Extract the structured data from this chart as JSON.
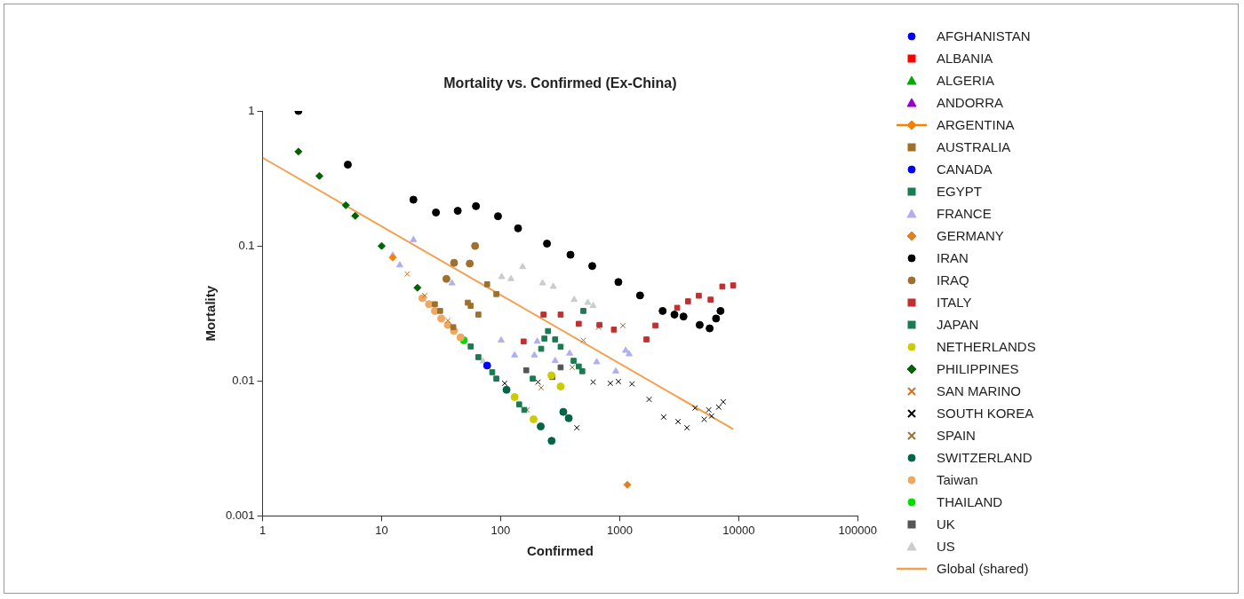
{
  "chart_data": {
    "type": "scatter",
    "title": "Mortality vs. Confirmed (Ex-China)",
    "xlabel": "Confirmed",
    "ylabel": "Mortality",
    "log": "xy",
    "grid": false,
    "legend": "right",
    "xlim": [
      1,
      100000
    ],
    "xticks": [
      1,
      10,
      100,
      1000,
      10000,
      100000
    ],
    "ylim": [
      0.001,
      1
    ],
    "yticks": [
      0.001,
      0.01,
      0.1,
      1
    ],
    "series": [
      {
        "name": "AFGHANISTAN",
        "color": "#0000ff",
        "marker": "circle"
      },
      {
        "name": "ALBANIA",
        "color": "#ff0000",
        "marker": "square"
      },
      {
        "name": "ALGERIA",
        "color": "#00aa00",
        "marker": "triangle"
      },
      {
        "name": "ANDORRA",
        "color": "#9900cc",
        "marker": "triangle"
      },
      {
        "name": "ARGENTINA",
        "type": "line",
        "color": "#ff8000",
        "marker": "diamond",
        "x": [
          12.4
        ],
        "values": [
          0.082
        ]
      },
      {
        "name": "AUSTRALIA",
        "color": "#a0702a",
        "marker": "square",
        "x": [
          28,
          31,
          40,
          53,
          56,
          65,
          77,
          92
        ],
        "values": [
          0.037,
          0.033,
          0.025,
          0.038,
          0.036,
          0.031,
          0.052,
          0.044
        ]
      },
      {
        "name": "CANADA",
        "color": "#0000ff",
        "marker": "circle",
        "x": [
          77
        ],
        "values": [
          0.013
        ]
      },
      {
        "name": "EGYPT",
        "color": "#1a7a50",
        "marker": "square",
        "x": [
          56
        ],
        "values": [
          0.018
        ]
      },
      {
        "name": "FRANCE",
        "color": "#b0b0f0",
        "marker": "triangle",
        "x": [
          12.4,
          14.2,
          18.5,
          39,
          101,
          131,
          192,
          203,
          287,
          380,
          641,
          927,
          1122,
          1200
        ],
        "values": [
          0.085,
          0.072,
          0.111,
          0.053,
          0.02,
          0.0155,
          0.0155,
          0.0196,
          0.0141,
          0.016,
          0.0138,
          0.0118,
          0.0168,
          0.0158
        ]
      },
      {
        "name": "GERMANY",
        "color": "#e08020",
        "marker": "diamond",
        "x": [
          1160
        ],
        "values": [
          0.0017
        ]
      },
      {
        "name": "IRAN",
        "color": "#000000",
        "marker": "circle",
        "x": [
          2,
          5.2,
          18.5,
          28.6,
          43.6,
          62,
          95,
          140,
          245,
          386,
          588,
          975,
          1483,
          2295,
          2885,
          3436,
          4700,
          5700,
          6450,
          7030
        ],
        "values": [
          1,
          0.4,
          0.22,
          0.177,
          0.182,
          0.197,
          0.166,
          0.135,
          0.104,
          0.086,
          0.071,
          0.054,
          0.043,
          0.033,
          0.031,
          0.03,
          0.026,
          0.0245,
          0.029,
          0.033
        ]
      },
      {
        "name": "IRAQ",
        "color": "#a07030",
        "marker": "circle",
        "x": [
          35,
          40.6,
          55,
          61
        ],
        "values": [
          0.057,
          0.075,
          0.074,
          0.1
        ]
      },
      {
        "name": "ITALY",
        "color": "#c03030",
        "marker": "square",
        "x": [
          156,
          229,
          319,
          453,
          676,
          894,
          1678,
          1995,
          3040,
          3750,
          4620,
          5800,
          7280,
          8980
        ],
        "values": [
          0.0196,
          0.031,
          0.031,
          0.0265,
          0.026,
          0.024,
          0.0203,
          0.0257,
          0.0348,
          0.0389,
          0.0428,
          0.04,
          0.05,
          0.051
        ]
      },
      {
        "name": "JAPAN",
        "color": "#1a7a50",
        "marker": "square",
        "x": [
          65,
          85,
          92,
          143,
          158,
          186,
          219,
          233,
          250,
          287,
          319,
          410,
          453,
          485,
          495
        ],
        "values": [
          0.015,
          0.0116,
          0.0104,
          0.0067,
          0.0061,
          0.0104,
          0.0173,
          0.0206,
          0.0234,
          0.0203,
          0.0179,
          0.0141,
          0.0128,
          0.0118,
          0.033
        ]
      },
      {
        "name": "NETHERLANDS",
        "color": "#cccc00",
        "marker": "circle",
        "x": [
          131,
          189,
          267,
          319
        ],
        "values": [
          0.0076,
          0.0052,
          0.011,
          0.0091
        ]
      },
      {
        "name": "PHILIPPINES",
        "color": "#006400",
        "marker": "diamond",
        "x": [
          2,
          3,
          5,
          6,
          10,
          20
        ],
        "values": [
          0.5,
          0.33,
          0.2,
          0.167,
          0.1,
          0.049
        ]
      },
      {
        "name": "SAN MARINO",
        "color": "#d07020",
        "marker": "cross",
        "x": [
          16.4,
          23,
          36
        ],
        "values": [
          0.062,
          0.043,
          0.028
        ]
      },
      {
        "name": "SOUTH KOREA",
        "color": "#000000",
        "marker": "cross",
        "x": [
          108,
          206,
          437,
          598,
          834,
          975,
          1268,
          1767,
          2340,
          3093,
          3680,
          4300,
          5130,
          5600,
          5920,
          6790,
          7410
        ],
        "values": [
          0.0096,
          0.0098,
          0.0045,
          0.0098,
          0.0096,
          0.0099,
          0.0095,
          0.0073,
          0.0054,
          0.005,
          0.0045,
          0.0063,
          0.0052,
          0.0061,
          0.0055,
          0.0064,
          0.007
        ]
      },
      {
        "name": "SPAIN",
        "color": "#a07030",
        "marker": "cross",
        "x": [
          167,
          219,
          400,
          495,
          664,
          1065
        ],
        "values": [
          0.0061,
          0.0089,
          0.0126,
          0.02,
          0.025,
          0.0257
        ]
      },
      {
        "name": "SWITZERLAND",
        "color": "#006644",
        "marker": "circle",
        "x": [
          112,
          217,
          268,
          336,
          373
        ],
        "values": [
          0.0086,
          0.0046,
          0.0036,
          0.0059,
          0.0053
        ]
      },
      {
        "name": "Taiwan",
        "color": "#f0a860",
        "marker": "circle",
        "x": [
          22,
          25,
          28,
          31.7,
          36,
          40.5,
          46
        ],
        "values": [
          0.041,
          0.037,
          0.033,
          0.029,
          0.026,
          0.0235,
          0.021
        ]
      },
      {
        "name": "THAILAND",
        "color": "#00dd00",
        "marker": "circle",
        "x": [
          49
        ],
        "values": [
          0.02
        ]
      },
      {
        "name": "UK",
        "color": "#555555",
        "marker": "square",
        "x": [
          164,
          272,
          319
        ],
        "values": [
          0.012,
          0.0107,
          0.0126
        ]
      },
      {
        "name": "US",
        "color": "#cccccc",
        "marker": "triangle",
        "x": [
          71,
          102,
          122,
          153,
          225,
          277,
          415,
          539,
          598
        ],
        "values": [
          0.014,
          0.059,
          0.057,
          0.07,
          0.053,
          0.05,
          0.04,
          0.038,
          0.036
        ]
      },
      {
        "name": "Global (shared)",
        "type": "line",
        "color": "#f5a050",
        "marker": "none",
        "x": [
          1,
          9000
        ],
        "values": [
          0.45,
          0.0044
        ]
      }
    ]
  }
}
